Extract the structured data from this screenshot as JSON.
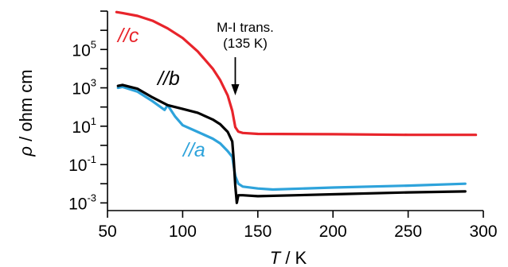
{
  "chart_data": {
    "type": "line",
    "xlabel": {
      "symbol": "T",
      "unit": " / K"
    },
    "ylabel": {
      "symbol": "ρ",
      "unit": " / ohm cm"
    },
    "xlim": [
      50,
      300
    ],
    "ylim_log10": [
      -3.4,
      7.0
    ],
    "y_scale": "log",
    "x_ticks": [
      50,
      100,
      150,
      200,
      250,
      300
    ],
    "y_ticks": [
      {
        "base": "10",
        "exp": "5",
        "value_log10": 5
      },
      {
        "base": "10",
        "exp": "3",
        "value_log10": 3
      },
      {
        "base": "10",
        "exp": "1",
        "value_log10": 1
      },
      {
        "base": "10",
        "exp": "-1",
        "value_log10": -1
      },
      {
        "base": "10",
        "exp": "-3",
        "value_log10": -3
      }
    ],
    "grid": false,
    "legend": "inline labels",
    "series": [
      {
        "name": "//c",
        "color": "#e8242b",
        "x": [
          56,
          60,
          70,
          80,
          90,
          100,
          110,
          120,
          125,
          130,
          133,
          135,
          137,
          140,
          150,
          200,
          250,
          295
        ],
        "y_log10": [
          6.95,
          6.9,
          6.75,
          6.5,
          6.1,
          5.6,
          4.9,
          4.0,
          3.4,
          2.6,
          1.8,
          0.95,
          0.72,
          0.65,
          0.6,
          0.58,
          0.55,
          0.55
        ]
      },
      {
        "name": "//b",
        "color": "#000000",
        "x": [
          57,
          60,
          70,
          80,
          90,
          100,
          110,
          120,
          125,
          130,
          133,
          134,
          135,
          136,
          137,
          140,
          150,
          200,
          250,
          288
        ],
        "y_log10": [
          3.1,
          3.15,
          2.95,
          2.5,
          2.1,
          1.9,
          1.7,
          1.35,
          1.1,
          0.7,
          0.2,
          -0.8,
          -2.1,
          -3.0,
          -2.6,
          -2.6,
          -2.65,
          -2.55,
          -2.45,
          -2.4
        ]
      },
      {
        "name": "//a",
        "color": "#2ea3db",
        "x": [
          57,
          60,
          70,
          80,
          88,
          90,
          95,
          100,
          110,
          120,
          125,
          130,
          133,
          135,
          137,
          140,
          150,
          160,
          200,
          250,
          288
        ],
        "y_log10": [
          3.0,
          3.05,
          2.8,
          2.3,
          1.85,
          2.1,
          1.5,
          1.05,
          0.7,
          0.35,
          0.1,
          -0.3,
          -0.6,
          -1.6,
          -2.0,
          -2.15,
          -2.25,
          -2.3,
          -2.2,
          -2.1,
          -2.0
        ]
      }
    ],
    "annotations": [
      {
        "line1": "M-I trans.",
        "line2": "(135 K)",
        "arrow_x": 135
      }
    ]
  }
}
